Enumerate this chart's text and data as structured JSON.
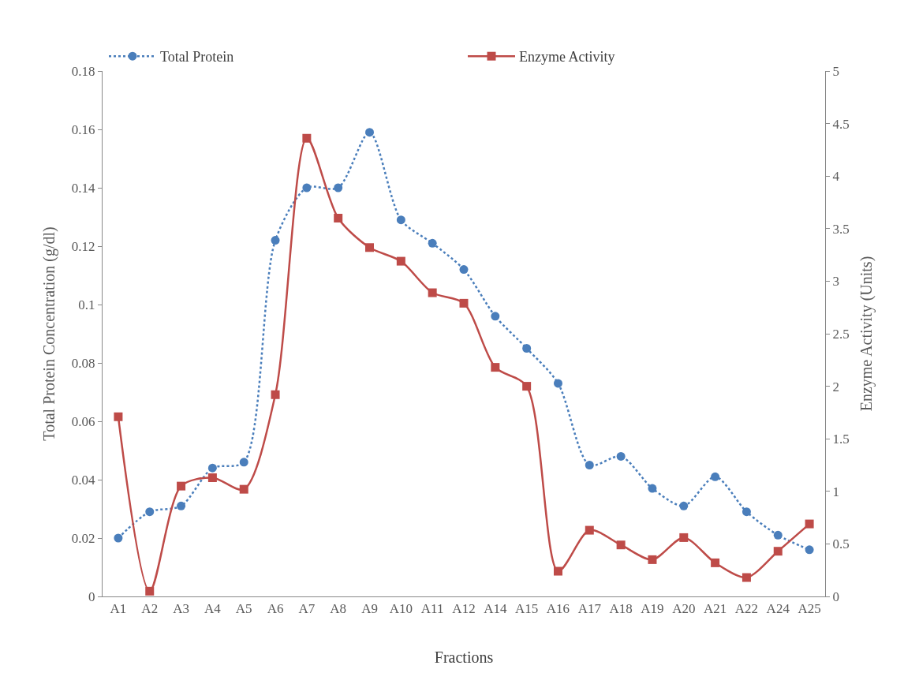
{
  "chart_data": {
    "type": "line",
    "xlabel": "Fractions",
    "ylabel": "Total Protein Concentration (g/dl)",
    "y2label": "Enzyme Activity (Units)",
    "categories": [
      "A1",
      "A2",
      "A3",
      "A4",
      "A5",
      "A6",
      "A7",
      "A8",
      "A9",
      "A10",
      "A11",
      "A12",
      "A14",
      "A15",
      "A16",
      "A17",
      "A18",
      "A19",
      "A20",
      "A21",
      "A22",
      "A24",
      "A25"
    ],
    "series": [
      {
        "name": "Total Protein",
        "color": "#4a7ebb",
        "marker": "circle",
        "line_style": "dotted",
        "values": [
          0.02,
          0.029,
          0.031,
          0.044,
          0.046,
          0.122,
          0.14,
          0.14,
          0.159,
          0.129,
          0.121,
          0.112,
          0.096,
          0.085,
          0.073,
          0.045,
          0.048,
          0.037,
          0.031,
          0.041,
          0.029,
          0.021,
          0.016
        ]
      },
      {
        "name": "Enzyme Activity",
        "color": "#be4b48",
        "marker": "square",
        "line_style": "solid",
        "axis": "y2",
        "values": [
          1.71,
          0.05,
          1.05,
          1.13,
          1.02,
          1.92,
          4.36,
          3.6,
          3.32,
          3.19,
          2.89,
          2.79,
          2.18,
          2.0,
          0.24,
          0.63,
          0.49,
          0.35,
          0.56,
          0.32,
          0.18,
          0.43,
          0.69
        ]
      }
    ],
    "ylim": [
      0,
      0.18
    ],
    "yticks": [
      0,
      0.02,
      0.04,
      0.06,
      0.08,
      0.1,
      0.12,
      0.14,
      0.16,
      0.18
    ],
    "y2lim": [
      0,
      5
    ],
    "y2ticks": [
      0,
      0.5,
      1,
      1.5,
      2,
      2.5,
      3,
      3.5,
      4,
      4.5,
      5
    ],
    "legend": "top"
  }
}
